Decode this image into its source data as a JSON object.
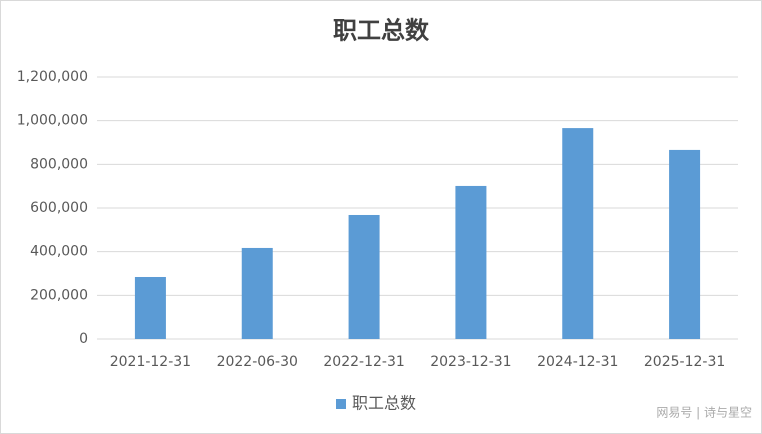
{
  "chart_data": {
    "type": "bar",
    "title": "职工总数",
    "categories": [
      "2021-12-31",
      "2022-06-30",
      "2022-12-31",
      "2023-12-31",
      "2024-12-31",
      "2025-12-31"
    ],
    "series": [
      {
        "name": "职工总数",
        "color": "#5b9bd5",
        "values": [
          284000,
          417000,
          568000,
          701000,
          966000,
          866000
        ]
      }
    ],
    "ylim": [
      0,
      1200000
    ],
    "yticks": [
      0,
      {
        "value": 200000,
        "label": "200,000"
      },
      {
        "value": 400000,
        "label": "400,000"
      },
      {
        "value": 600000,
        "label": "600,000"
      },
      {
        "value": 800000,
        "label": "800,000"
      },
      {
        "value": 1000000,
        "label": "1,000,000"
      },
      {
        "value": 1200000,
        "label": "1,200,000"
      }
    ],
    "grid": true,
    "legend": "bottom"
  },
  "watermark": "网易号 | 诗与星空"
}
